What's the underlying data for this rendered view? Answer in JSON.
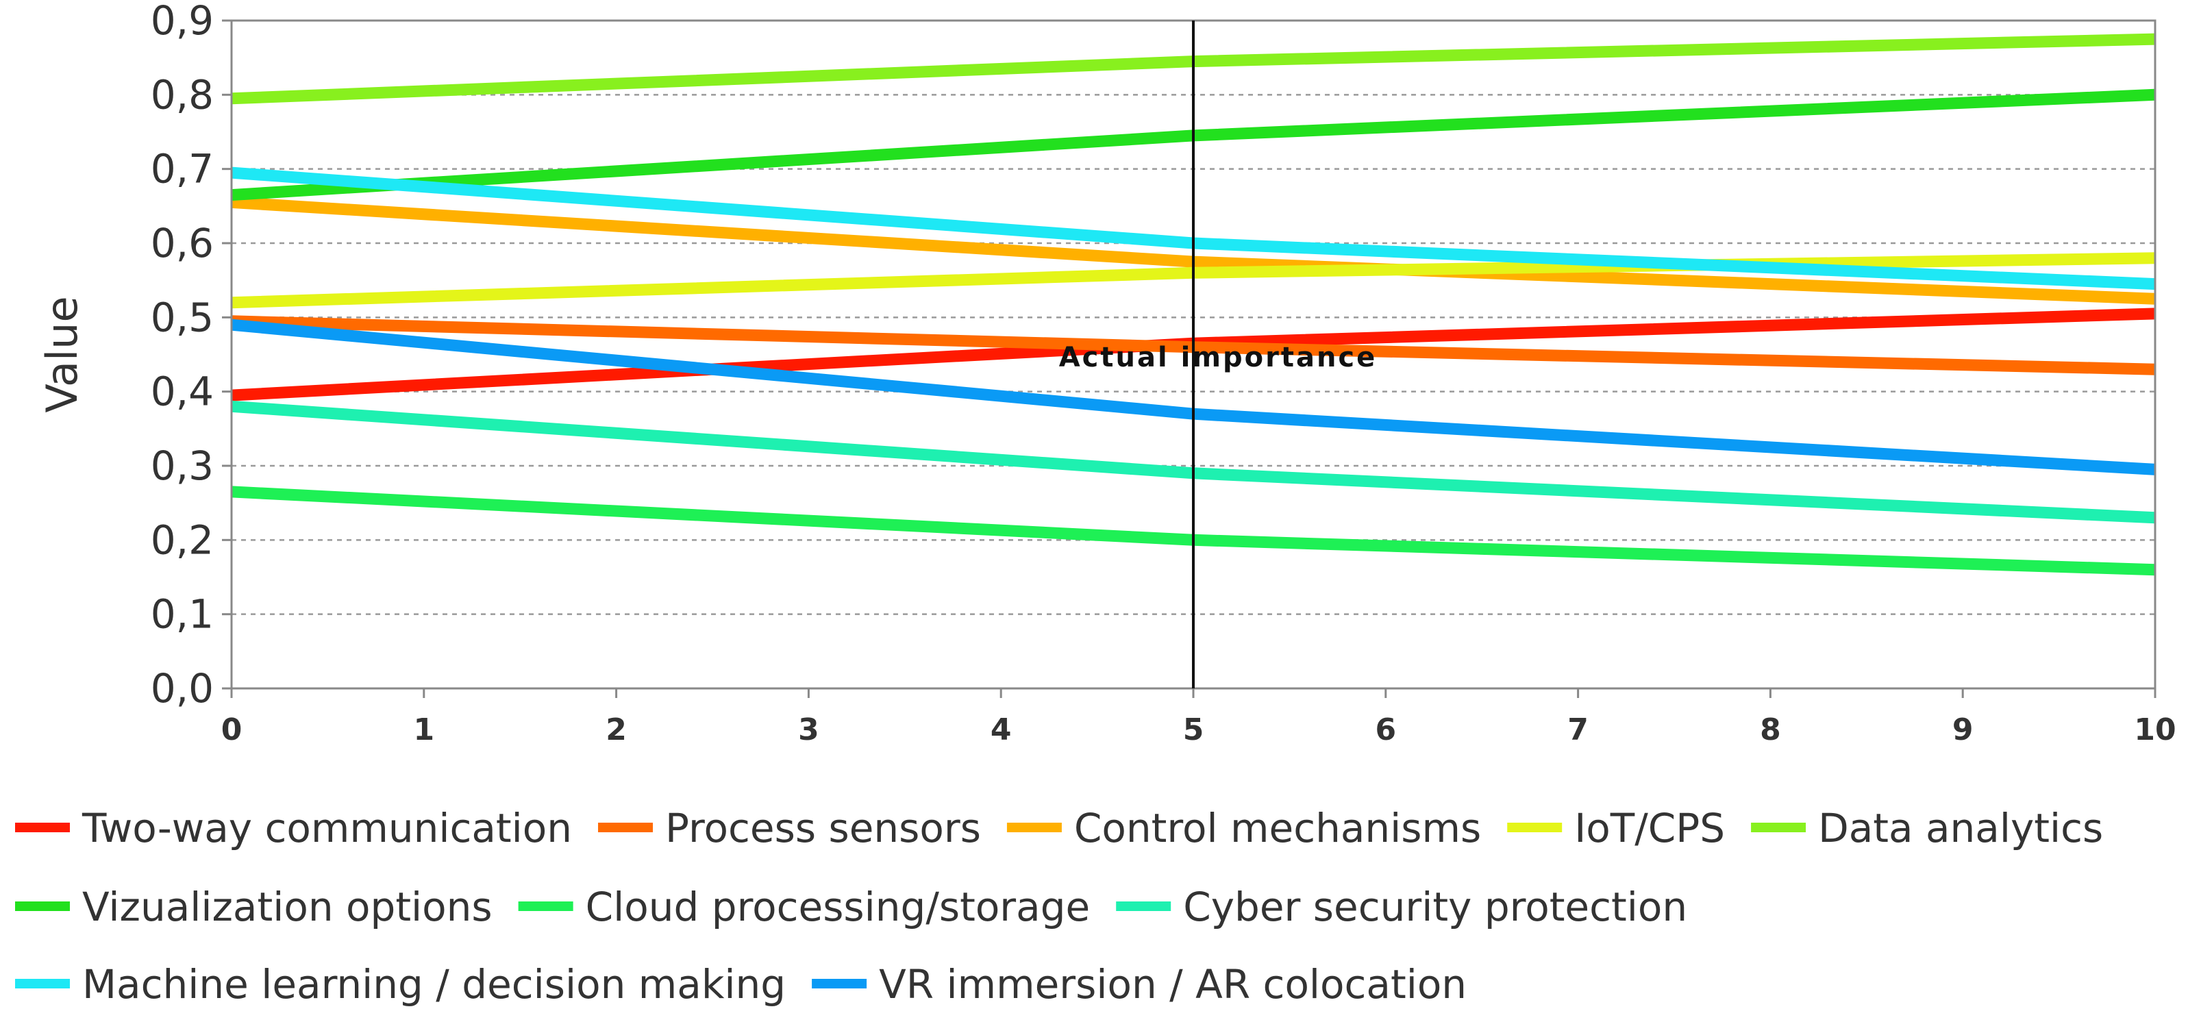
{
  "chart_data": {
    "type": "line",
    "title": "",
    "xlabel": "",
    "ylabel": "Value",
    "xlim": [
      0,
      10
    ],
    "ylim": [
      0,
      0.9
    ],
    "grid": true,
    "x_ticks": [
      0,
      1,
      2,
      3,
      4,
      5,
      6,
      7,
      8,
      9,
      10
    ],
    "x_tick_labels": [
      "0",
      "1",
      "2",
      "3",
      "4",
      "5",
      "6",
      "7",
      "8",
      "9",
      "10"
    ],
    "y_ticks": [
      0,
      0.1,
      0.2,
      0.3,
      0.4,
      0.5,
      0.6,
      0.7,
      0.8,
      0.9
    ],
    "y_tick_labels": [
      "0,0",
      "0,1",
      "0,2",
      "0,3",
      "0,4",
      "0,5",
      "0,6",
      "0,7",
      "0,8",
      "0,9"
    ],
    "annotation": {
      "text": "Actual importance",
      "x": 5
    },
    "legend_position": "bottom",
    "series": [
      {
        "name": "Two-way communication",
        "color": "#ff1a00",
        "x": [
          0,
          5,
          10
        ],
        "values": [
          0.395,
          0.465,
          0.505
        ]
      },
      {
        "name": "Process sensors",
        "color": "#ff6a00",
        "x": [
          0,
          5,
          10
        ],
        "values": [
          0.495,
          0.46,
          0.43
        ]
      },
      {
        "name": "Control mechanisms",
        "color": "#ffb000",
        "x": [
          0,
          5,
          10
        ],
        "values": [
          0.655,
          0.575,
          0.525
        ]
      },
      {
        "name": "IoT/CPS",
        "color": "#e4f519",
        "x": [
          0,
          5,
          10
        ],
        "values": [
          0.52,
          0.56,
          0.58
        ]
      },
      {
        "name": "Data analytics",
        "color": "#88f01e",
        "x": [
          0,
          5,
          10
        ],
        "values": [
          0.795,
          0.845,
          0.875
        ]
      },
      {
        "name": "Vizualization options",
        "color": "#22e01e",
        "x": [
          0,
          5,
          10
        ],
        "values": [
          0.665,
          0.745,
          0.8
        ]
      },
      {
        "name": "Cloud processing/storage",
        "color": "#1ef055",
        "x": [
          0,
          5,
          10
        ],
        "values": [
          0.265,
          0.2,
          0.16
        ]
      },
      {
        "name": "Cyber security protection",
        "color": "#1ef0b0",
        "x": [
          0,
          5,
          10
        ],
        "values": [
          0.38,
          0.29,
          0.23
        ]
      },
      {
        "name": "Machine learning / decision making",
        "color": "#1ee8f5",
        "x": [
          0,
          5,
          10
        ],
        "values": [
          0.695,
          0.6,
          0.545
        ]
      },
      {
        "name": "VR immersion / AR colocation",
        "color": "#0a9af5",
        "x": [
          0,
          5,
          10
        ],
        "values": [
          0.49,
          0.37,
          0.295
        ]
      }
    ]
  }
}
